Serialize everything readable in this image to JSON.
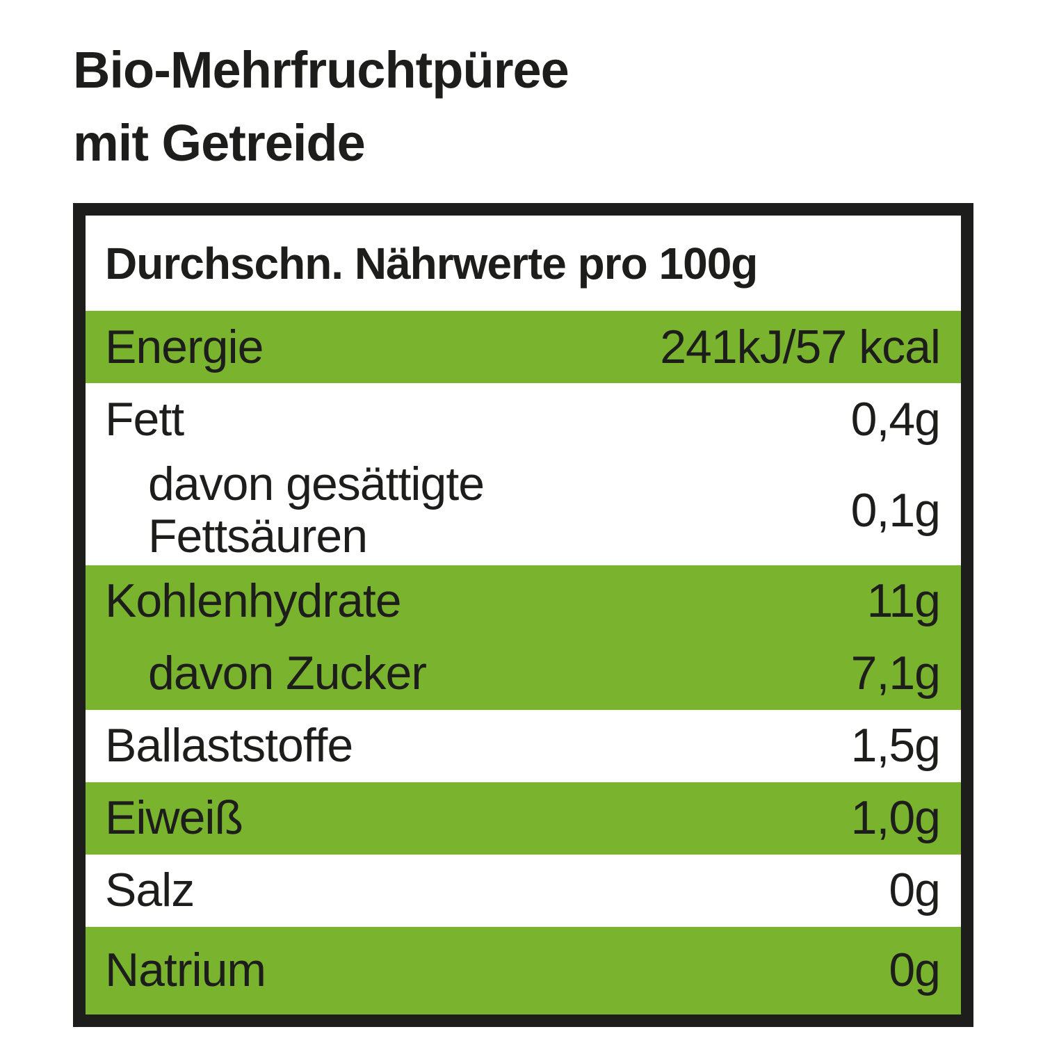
{
  "title": {
    "line1": "Bio-Mehrfruchtpüree",
    "line2": "mit Getreide"
  },
  "table": {
    "header": "Durchschn. Nährwerte pro 100g",
    "rows": [
      {
        "label": "Energie",
        "value": "241kJ/57 kcal",
        "highlighted": true,
        "indent": false
      },
      {
        "label": "Fett",
        "value": "0,4g",
        "highlighted": false,
        "indent": false
      },
      {
        "label": "davon gesättigte Fettsäuren",
        "value": "0,1g",
        "highlighted": false,
        "indent": true
      },
      {
        "label": "Kohlenhydrate",
        "value": "11g",
        "highlighted": true,
        "indent": false
      },
      {
        "label": "davon Zucker",
        "value": "7,1g",
        "highlighted": true,
        "indent": true
      },
      {
        "label": "Ballaststoffe",
        "value": "1,5g",
        "highlighted": false,
        "indent": false
      },
      {
        "label": "Eiweiß",
        "value": "1,0g",
        "highlighted": true,
        "indent": false
      },
      {
        "label": "Salz",
        "value": "0g",
        "highlighted": false,
        "indent": false
      },
      {
        "label": "Natrium",
        "value": "0g",
        "highlighted": true,
        "indent": false
      }
    ]
  },
  "colors": {
    "highlight_green": "#7ab42e",
    "text_black": "#1d1d1b",
    "border_black": "#1d1d1b",
    "background": "#ffffff"
  }
}
